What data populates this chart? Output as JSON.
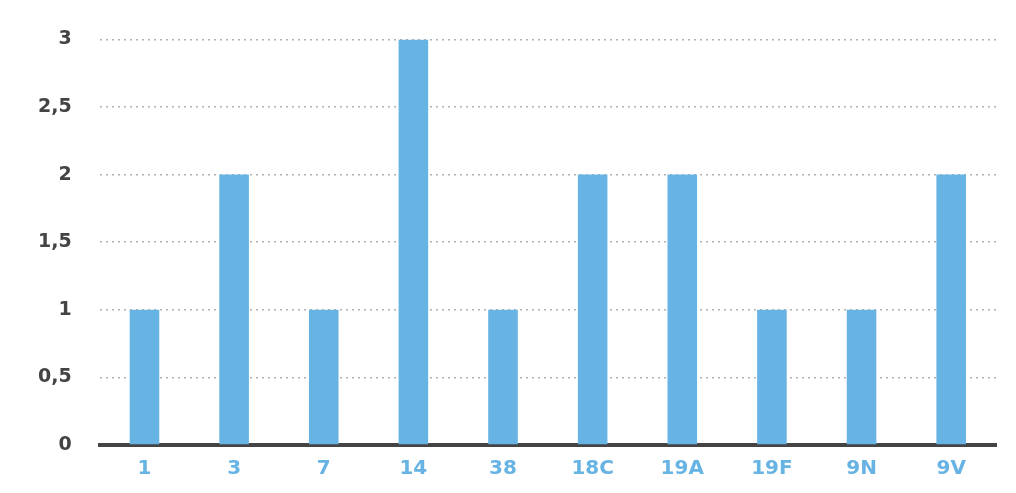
{
  "chart_data": {
    "type": "bar",
    "categories": [
      "1",
      "3",
      "7",
      "14",
      "38",
      "18C",
      "19A",
      "19F",
      "9N",
      "9V"
    ],
    "values": [
      1,
      2,
      1,
      3,
      1,
      2,
      2,
      1,
      1,
      2
    ],
    "color": "#67b3e3",
    "ylim": [
      0,
      3
    ],
    "yticks": [
      0,
      {
        "value": 0.5,
        "label": "0,5"
      },
      1,
      {
        "value": 1.5,
        "label": "1,5"
      },
      2,
      {
        "value": 2.5,
        "label": "2,5"
      },
      3
    ],
    "grid": "y",
    "legend": false
  }
}
